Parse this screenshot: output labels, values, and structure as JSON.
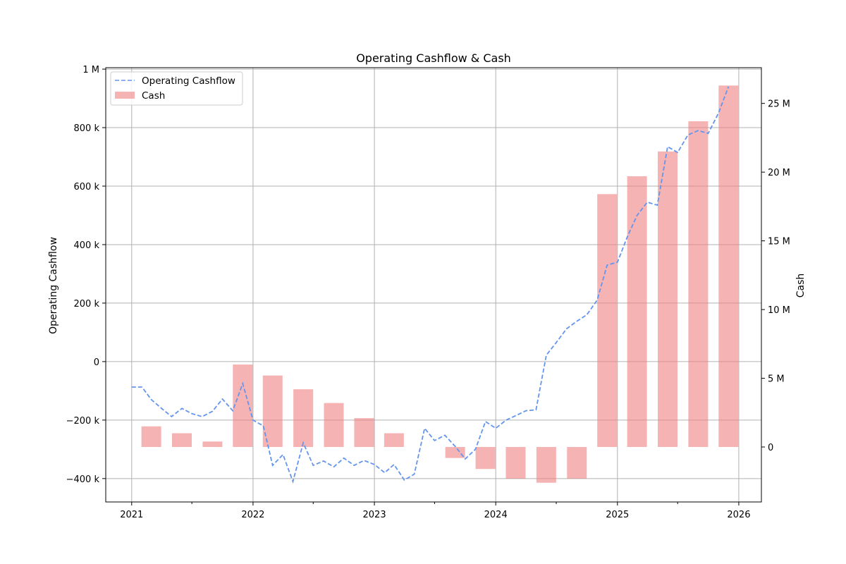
{
  "chart_data": {
    "type": "bar+line",
    "title": "Operating Cashflow & Cash",
    "xlabel": "",
    "ylabel_left": "Operating Cashflow",
    "ylabel_right": "Cash",
    "x_ticks": [
      "2021",
      "2022",
      "2023",
      "2024",
      "2025",
      "2026"
    ],
    "y_left_ticks": [
      {
        "value": -400000,
        "label": "−400 k"
      },
      {
        "value": -200000,
        "label": "−200 k"
      },
      {
        "value": 0,
        "label": "0"
      },
      {
        "value": 200000,
        "label": "200 k"
      },
      {
        "value": 400000,
        "label": "400 k"
      },
      {
        "value": 600000,
        "label": "600 k"
      },
      {
        "value": 800000,
        "label": "800 k"
      },
      {
        "value": 1000000,
        "label": "1 M"
      }
    ],
    "y_right_ticks": [
      {
        "value": 0,
        "label": "0"
      },
      {
        "value": 5000000,
        "label": "5 M"
      },
      {
        "value": 10000000,
        "label": "10 M"
      },
      {
        "value": 15000000,
        "label": "15 M"
      },
      {
        "value": 20000000,
        "label": "20 M"
      },
      {
        "value": 25000000,
        "label": "25 M"
      }
    ],
    "ylim_left": [
      -480000,
      1005000
    ],
    "ylim_right": [
      -4000000,
      27600000
    ],
    "xlim": [
      "2020-10-15",
      "2026-03-10"
    ],
    "grid": true,
    "legend_position": "top-left",
    "series": [
      {
        "name": "Operating Cashflow",
        "kind": "line",
        "style": "dashed",
        "color": "#6495ed",
        "x": [
          "2021-01-01",
          "2021-02-01",
          "2021-03-01",
          "2021-04-01",
          "2021-05-01",
          "2021-06-01",
          "2021-07-01",
          "2021-08-01",
          "2021-09-01",
          "2021-10-01",
          "2021-11-01",
          "2021-12-01",
          "2022-01-01",
          "2022-02-01",
          "2022-03-01",
          "2022-04-01",
          "2022-05-01",
          "2022-06-01",
          "2022-07-01",
          "2022-08-01",
          "2022-09-01",
          "2022-10-01",
          "2022-11-01",
          "2022-12-01",
          "2023-01-01",
          "2023-02-01",
          "2023-03-01",
          "2023-04-01",
          "2023-05-01",
          "2023-06-01",
          "2023-07-01",
          "2023-08-01",
          "2023-09-01",
          "2023-10-01",
          "2023-11-01",
          "2023-12-01",
          "2024-01-01",
          "2024-02-01",
          "2024-03-01",
          "2024-04-01",
          "2024-05-01",
          "2024-06-01",
          "2024-07-01",
          "2024-08-01",
          "2024-09-01",
          "2024-10-01",
          "2024-11-01",
          "2024-12-01",
          "2025-01-01",
          "2025-02-01",
          "2025-03-01",
          "2025-04-01",
          "2025-05-01",
          "2025-06-01",
          "2025-07-01",
          "2025-08-01",
          "2025-09-01",
          "2025-10-01",
          "2025-11-01",
          "2025-12-01"
        ],
        "values": [
          -87000,
          -87000,
          -130000,
          -160000,
          -188000,
          -160000,
          -178000,
          -188000,
          -170000,
          -128000,
          -168000,
          -75000,
          -200000,
          -220000,
          -355000,
          -318000,
          -410000,
          -278000,
          -355000,
          -340000,
          -360000,
          -330000,
          -355000,
          -338000,
          -352000,
          -380000,
          -352000,
          -405000,
          -385000,
          -228000,
          -270000,
          -252000,
          -290000,
          -333000,
          -300000,
          -205000,
          -228000,
          -200000,
          -185000,
          -168000,
          -165000,
          22000,
          65000,
          112000,
          138000,
          160000,
          210000,
          330000,
          340000,
          430000,
          500000,
          545000,
          535000,
          735000,
          715000,
          775000,
          790000,
          780000,
          850000,
          940000
        ]
      },
      {
        "name": "Cash",
        "kind": "bar",
        "color": "#f08080",
        "x": [
          "2021-03-01",
          "2021-06-01",
          "2021-09-01",
          "2021-12-01",
          "2022-03-01",
          "2022-06-01",
          "2022-09-01",
          "2022-12-01",
          "2023-03-01",
          "2023-06-01",
          "2023-09-01",
          "2023-12-01",
          "2024-03-01",
          "2024-06-01",
          "2024-09-01",
          "2024-12-01",
          "2025-03-01",
          "2025-06-01",
          "2025-09-01",
          "2025-12-01"
        ],
        "values": [
          1500000,
          1000000,
          400000,
          6000000,
          5200000,
          4200000,
          3200000,
          2100000,
          1000000,
          0,
          -800000,
          -1600000,
          -2300000,
          -2600000,
          -2300000,
          18400000,
          19700000,
          21500000,
          23700000,
          26300000
        ]
      }
    ]
  }
}
